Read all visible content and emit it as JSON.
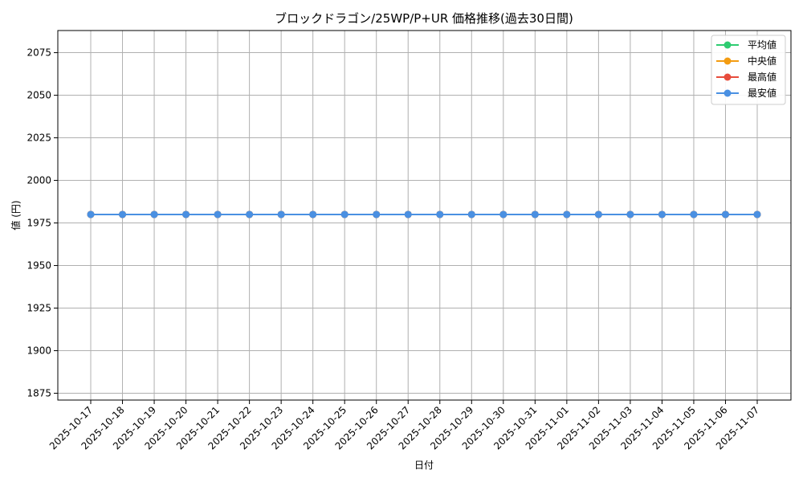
{
  "chart_data": {
    "type": "line",
    "title": "ブロックドラゴン/25WP/P+UR 価格推移(過去30日間)",
    "xlabel": "日付",
    "ylabel": "値 (円)",
    "ylim": [
      1871,
      2088
    ],
    "yticks": [
      1875,
      1900,
      1925,
      1950,
      1975,
      2000,
      2025,
      2050,
      2075
    ],
    "grid": true,
    "legend_position": "top-right",
    "x": [
      "2025-10-17",
      "2025-10-18",
      "2025-10-19",
      "2025-10-20",
      "2025-10-21",
      "2025-10-22",
      "2025-10-23",
      "2025-10-24",
      "2025-10-25",
      "2025-10-26",
      "2025-10-27",
      "2025-10-28",
      "2025-10-29",
      "2025-10-30",
      "2025-10-31",
      "2025-11-01",
      "2025-11-02",
      "2025-11-03",
      "2025-11-04",
      "2025-11-05",
      "2025-11-06",
      "2025-11-07"
    ],
    "series": [
      {
        "name": "平均値",
        "color": "#2ecc71",
        "values": [
          1980,
          1980,
          1980,
          1980,
          1980,
          1980,
          1980,
          1980,
          1980,
          1980,
          1980,
          1980,
          1980,
          1980,
          1980,
          1980,
          1980,
          1980,
          1980,
          1980,
          1980,
          1980
        ]
      },
      {
        "name": "中央値",
        "color": "#f39c12",
        "values": [
          1980,
          1980,
          1980,
          1980,
          1980,
          1980,
          1980,
          1980,
          1980,
          1980,
          1980,
          1980,
          1980,
          1980,
          1980,
          1980,
          1980,
          1980,
          1980,
          1980,
          1980,
          1980
        ]
      },
      {
        "name": "最高値",
        "color": "#e74c3c",
        "values": [
          1980,
          1980,
          1980,
          1980,
          1980,
          1980,
          1980,
          1980,
          1980,
          1980,
          1980,
          1980,
          1980,
          1980,
          1980,
          1980,
          1980,
          1980,
          1980,
          1980,
          1980,
          1980
        ]
      },
      {
        "name": "最安値",
        "color": "#4a90e2",
        "values": [
          1980,
          1980,
          1980,
          1980,
          1980,
          1980,
          1980,
          1980,
          1980,
          1980,
          1980,
          1980,
          1980,
          1980,
          1980,
          1980,
          1980,
          1980,
          1980,
          1980,
          1980,
          1980
        ]
      }
    ]
  }
}
